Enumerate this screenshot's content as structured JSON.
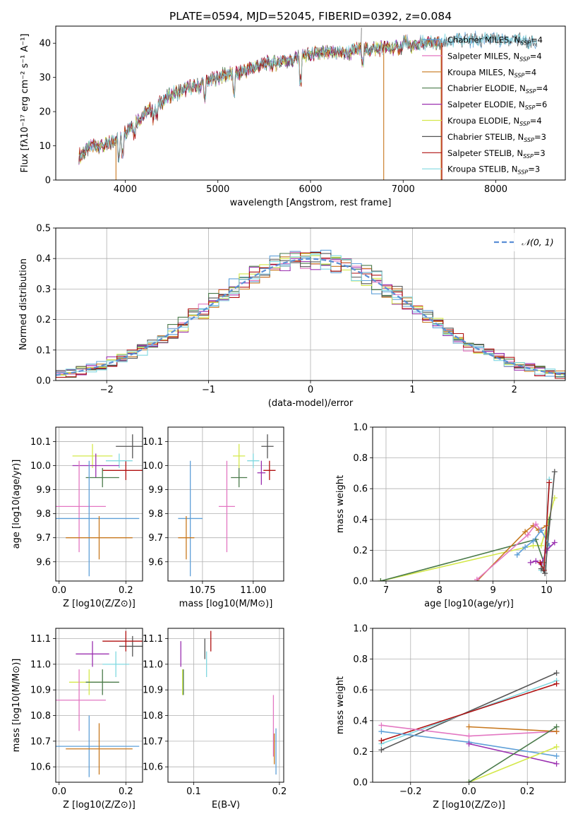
{
  "title": "PLATE=0594, MJD=52045, FIBERID=0392, z=0.084",
  "colors": {
    "chabrier_miles": "#5fa0d8",
    "salpeter_miles": "#e377c2",
    "kroupa_miles": "#c8781e",
    "chabrier_elodie": "#4a7a4a",
    "salpeter_elodie": "#9b30b0",
    "kroupa_elodie": "#d4e84a",
    "chabrier_stelib": "#555555",
    "salpeter_stelib": "#b01010",
    "kroupa_stelib": "#80d8e0",
    "gauss": "#5b8fd6"
  },
  "chart_data": [
    {
      "id": "spectrum",
      "type": "line",
      "xlabel": "wavelength [Angstrom, rest frame]",
      "ylabel": "Flux [fλ10⁻¹⁷ erg cm⁻² s⁻¹ A⁻¹]",
      "xlim": [
        3250,
        8750
      ],
      "ylim": [
        0,
        45
      ],
      "xticks": [
        4000,
        5000,
        6000,
        7000,
        8000
      ],
      "yticks": [
        0,
        10,
        20,
        30,
        40
      ],
      "legend_position": "top-right",
      "legend": [
        {
          "base": "Chabrier MILES, N",
          "n": "4",
          "color_key": "chabrier_miles"
        },
        {
          "base": "Salpeter MILES, N",
          "n": "4",
          "color_key": "salpeter_miles"
        },
        {
          "base": "Kroupa MILES, N",
          "n": "4",
          "color_key": "kroupa_miles"
        },
        {
          "base": "Chabrier ELODIE, N",
          "n": "4",
          "color_key": "chabrier_elodie"
        },
        {
          "base": "Salpeter ELODIE, N",
          "n": "6",
          "color_key": "salpeter_elodie"
        },
        {
          "base": "Kroupa ELODIE, N",
          "n": "4",
          "color_key": "kroupa_elodie"
        },
        {
          "base": "Chabrier STELIB, N",
          "n": "3",
          "color_key": "chabrier_stelib"
        },
        {
          "base": "Salpeter STELIB, N",
          "n": "3",
          "color_key": "salpeter_stelib"
        },
        {
          "base": "Kroupa STELIB, N",
          "n": "3",
          "color_key": "kroupa_stelib"
        }
      ],
      "continuum": [
        [
          3500,
          7
        ],
        [
          3650,
          10
        ],
        [
          3800,
          10
        ],
        [
          3900,
          12
        ],
        [
          4000,
          14
        ],
        [
          4100,
          17
        ],
        [
          4200,
          19
        ],
        [
          4300,
          21
        ],
        [
          4400,
          23
        ],
        [
          4500,
          25
        ],
        [
          4600,
          26
        ],
        [
          4700,
          27
        ],
        [
          4800,
          27.5
        ],
        [
          4900,
          29
        ],
        [
          5000,
          30
        ],
        [
          5100,
          31
        ],
        [
          5200,
          31
        ],
        [
          5300,
          32
        ],
        [
          5400,
          33
        ],
        [
          5500,
          34
        ],
        [
          5600,
          34
        ],
        [
          5700,
          35
        ],
        [
          5800,
          35
        ],
        [
          5900,
          36
        ],
        [
          6000,
          36.5
        ],
        [
          6100,
          37
        ],
        [
          6200,
          37
        ],
        [
          6300,
          37.5
        ],
        [
          6400,
          37
        ],
        [
          6500,
          38
        ],
        [
          6600,
          38
        ],
        [
          6700,
          38.5
        ],
        [
          6800,
          38.5
        ],
        [
          6900,
          38.5
        ],
        [
          7000,
          39
        ],
        [
          7100,
          39
        ],
        [
          7200,
          40
        ],
        [
          7300,
          40
        ],
        [
          7400,
          40
        ],
        [
          7600,
          41
        ],
        [
          7800,
          41
        ],
        [
          8000,
          41
        ],
        [
          8200,
          41
        ],
        [
          8400,
          40
        ]
      ],
      "drop_edges": [
        {
          "x": 3900,
          "color_key": "kroupa_miles"
        },
        {
          "x": 6790,
          "color_key": "kroupa_miles"
        },
        {
          "x": 7410,
          "color_key": "kroupa_miles"
        },
        {
          "x": 7418,
          "color_key": "salpeter_stelib"
        }
      ]
    },
    {
      "id": "residuals",
      "type": "line",
      "xlabel": "(data-model)/error",
      "ylabel": "Normed distribution",
      "xlim": [
        -2.5,
        2.5
      ],
      "ylim": [
        0,
        0.5
      ],
      "xticks": [
        -2,
        -1,
        0,
        1,
        2
      ],
      "yticks": [
        0,
        0.1,
        0.2,
        0.3,
        0.4,
        0.5
      ],
      "legend_position": "top-right",
      "gauss_label": "𝒩(0, 1)"
    },
    {
      "id": "z_vs_age",
      "type": "scatter",
      "xlabel": "Z [log10(Z/Z⊙)]",
      "ylabel": "age  [log10(age/yr)]",
      "xlim": [
        -0.01,
        0.25
      ],
      "ylim": [
        9.52,
        10.16
      ],
      "xticks": [
        0.0,
        0.2
      ],
      "yticks": [
        9.6,
        9.7,
        9.8,
        9.9,
        10.0,
        10.1
      ],
      "points": [
        {
          "color_key": "chabrier_stelib",
          "x": 0.22,
          "xerr": 0.05,
          "y": 10.08,
          "yerr": 0.05
        },
        {
          "color_key": "salpeter_stelib",
          "x": 0.2,
          "xerr": 0.07,
          "y": 9.98,
          "yerr": 0.04
        },
        {
          "color_key": "kroupa_stelib",
          "x": 0.18,
          "xerr": 0.04,
          "y": 10.02,
          "yerr": 0.03
        },
        {
          "color_key": "kroupa_elodie",
          "x": 0.1,
          "xerr": 0.06,
          "y": 10.04,
          "yerr": 0.05
        },
        {
          "color_key": "salpeter_elodie",
          "x": 0.11,
          "xerr": 0.07,
          "y": 10.0,
          "yerr": 0.05
        },
        {
          "color_key": "chabrier_elodie",
          "x": 0.13,
          "xerr": 0.05,
          "y": 9.95,
          "yerr": 0.04
        },
        {
          "color_key": "salpeter_miles",
          "x": 0.06,
          "xerr": 0.08,
          "y": 9.83,
          "yerr": 0.19
        },
        {
          "color_key": "chabrier_miles",
          "x": 0.09,
          "xerr": 0.15,
          "y": 9.78,
          "yerr": 0.24
        },
        {
          "color_key": "kroupa_miles",
          "x": 0.12,
          "xerr": 0.1,
          "y": 9.7,
          "yerr": 0.09
        }
      ]
    },
    {
      "id": "mass_vs_age",
      "type": "scatter",
      "xlabel": "mass [log10(M/M⊙)]",
      "xlim": [
        10.58,
        11.15
      ],
      "ylim": [
        9.52,
        10.16
      ],
      "xticks": [
        10.75,
        11.0
      ],
      "yticks": [
        9.6,
        9.7,
        9.8,
        9.9,
        10.0,
        10.1
      ],
      "points": [
        {
          "color_key": "chabrier_stelib",
          "x": 11.07,
          "xerr": 0.03,
          "y": 10.08,
          "yerr": 0.05
        },
        {
          "color_key": "salpeter_stelib",
          "x": 11.08,
          "xerr": 0.03,
          "y": 9.98,
          "yerr": 0.04
        },
        {
          "color_key": "kroupa_stelib",
          "x": 11.0,
          "xerr": 0.03,
          "y": 10.02,
          "yerr": 0.03
        },
        {
          "color_key": "kroupa_elodie",
          "x": 10.93,
          "xerr": 0.03,
          "y": 10.04,
          "yerr": 0.05
        },
        {
          "color_key": "salpeter_elodie",
          "x": 11.04,
          "xerr": 0.02,
          "y": 9.97,
          "yerr": 0.05
        },
        {
          "color_key": "chabrier_elodie",
          "x": 10.93,
          "xerr": 0.04,
          "y": 9.95,
          "yerr": 0.04
        },
        {
          "color_key": "salpeter_miles",
          "x": 10.87,
          "xerr": 0.04,
          "y": 9.83,
          "yerr": 0.19
        },
        {
          "color_key": "chabrier_miles",
          "x": 10.69,
          "xerr": 0.06,
          "y": 9.78,
          "yerr": 0.24
        },
        {
          "color_key": "kroupa_miles",
          "x": 10.67,
          "xerr": 0.04,
          "y": 9.7,
          "yerr": 0.09
        }
      ]
    },
    {
      "id": "age_vs_weight",
      "type": "line",
      "xlabel": "age  [log10(age/yr)]",
      "ylabel": "mass weight",
      "xlim": [
        6.75,
        10.35
      ],
      "ylim": [
        0,
        1
      ],
      "xticks": [
        7,
        8,
        9,
        10
      ],
      "yticks": [
        0,
        0.2,
        0.4,
        0.6,
        0.8,
        1.0
      ],
      "series": [
        {
          "color_key": "kroupa_elodie",
          "x": [
            6.9,
            9.75,
            9.9,
            10.15
          ],
          "y": [
            0.0,
            0.23,
            0.23,
            0.54
          ]
        },
        {
          "color_key": "chabrier_elodie",
          "x": [
            6.9,
            9.8,
            9.95,
            10.05
          ],
          "y": [
            0.0,
            0.27,
            0.12,
            0.4
          ]
        },
        {
          "color_key": "kroupa_miles",
          "x": [
            8.7,
            9.6,
            9.75,
            9.85,
            10.0
          ],
          "y": [
            0.0,
            0.32,
            0.36,
            0.33,
            0.36
          ]
        },
        {
          "color_key": "salpeter_miles",
          "x": [
            8.7,
            9.65,
            9.8,
            9.9
          ],
          "y": [
            0.01,
            0.3,
            0.37,
            0.33
          ]
        },
        {
          "color_key": "chabrier_miles",
          "x": [
            9.45,
            9.6,
            9.75,
            9.9,
            10.05
          ],
          "y": [
            0.17,
            0.22,
            0.26,
            0.33,
            0.23
          ]
        },
        {
          "color_key": "salpeter_elodie",
          "x": [
            9.7,
            9.8,
            9.9,
            10.0,
            10.15
          ],
          "y": [
            0.12,
            0.13,
            0.11,
            0.2,
            0.25
          ]
        },
        {
          "color_key": "kroupa_stelib",
          "x": [
            9.9,
            9.95,
            10.05
          ],
          "y": [
            0.07,
            0.1,
            0.66
          ]
        },
        {
          "color_key": "salpeter_stelib",
          "x": [
            9.88,
            9.95,
            10.05
          ],
          "y": [
            0.12,
            0.07,
            0.64
          ]
        },
        {
          "color_key": "chabrier_stelib",
          "x": [
            9.9,
            9.97,
            10.15
          ],
          "y": [
            0.08,
            0.05,
            0.71
          ]
        }
      ]
    },
    {
      "id": "z_vs_mass",
      "type": "scatter",
      "xlabel": "Z [log10(Z/Z⊙)]",
      "ylabel": "mass [log10(M/M⊙)]",
      "xlim": [
        -0.01,
        0.25
      ],
      "ylim": [
        10.54,
        11.14
      ],
      "xticks": [
        0.0,
        0.2
      ],
      "yticks": [
        10.6,
        10.7,
        10.8,
        10.9,
        11.0,
        11.1
      ],
      "points": [
        {
          "color_key": "chabrier_stelib",
          "x": 0.22,
          "xerr": 0.04,
          "y": 11.07,
          "yerr": 0.04
        },
        {
          "color_key": "salpeter_stelib",
          "x": 0.2,
          "xerr": 0.07,
          "y": 11.09,
          "yerr": 0.04
        },
        {
          "color_key": "kroupa_stelib",
          "x": 0.17,
          "xerr": 0.04,
          "y": 11.0,
          "yerr": 0.05
        },
        {
          "color_key": "salpeter_elodie",
          "x": 0.1,
          "xerr": 0.05,
          "y": 11.04,
          "yerr": 0.05
        },
        {
          "color_key": "kroupa_elodie",
          "x": 0.09,
          "xerr": 0.06,
          "y": 10.93,
          "yerr": 0.05
        },
        {
          "color_key": "chabrier_elodie",
          "x": 0.13,
          "xerr": 0.05,
          "y": 10.93,
          "yerr": 0.05
        },
        {
          "color_key": "salpeter_miles",
          "x": 0.06,
          "xerr": 0.08,
          "y": 10.86,
          "yerr": 0.12
        },
        {
          "color_key": "chabrier_miles",
          "x": 0.09,
          "xerr": 0.15,
          "y": 10.68,
          "yerr": 0.12
        },
        {
          "color_key": "kroupa_miles",
          "x": 0.12,
          "xerr": 0.1,
          "y": 10.67,
          "yerr": 0.1
        }
      ]
    },
    {
      "id": "ebv_vs_mass",
      "type": "scatter",
      "xlabel": "E(B-V)",
      "xlim": [
        0.07,
        0.205
      ],
      "ylim": [
        10.54,
        11.14
      ],
      "xticks": [
        0.1,
        0.2
      ],
      "yticks": [
        10.6,
        10.7,
        10.8,
        10.9,
        11.0,
        11.1
      ],
      "points": [
        {
          "color_key": "salpeter_stelib",
          "x": 0.12,
          "xerr": 0,
          "y": 11.09,
          "yerr": 0.04
        },
        {
          "color_key": "chabrier_stelib",
          "x": 0.113,
          "xerr": 0,
          "y": 11.06,
          "yerr": 0.04
        },
        {
          "color_key": "kroupa_stelib",
          "x": 0.115,
          "xerr": 0,
          "y": 11.0,
          "yerr": 0.05
        },
        {
          "color_key": "salpeter_elodie",
          "x": 0.085,
          "xerr": 0,
          "y": 11.04,
          "yerr": 0.05
        },
        {
          "color_key": "kroupa_elodie",
          "x": 0.087,
          "xerr": 0,
          "y": 10.93,
          "yerr": 0.05
        },
        {
          "color_key": "chabrier_elodie",
          "x": 0.088,
          "xerr": 0,
          "y": 10.93,
          "yerr": 0.05
        },
        {
          "color_key": "salpeter_miles",
          "x": 0.193,
          "xerr": 0,
          "y": 10.76,
          "yerr": 0.12
        },
        {
          "color_key": "kroupa_miles",
          "x": 0.194,
          "xerr": 0,
          "y": 10.67,
          "yerr": 0.06
        },
        {
          "color_key": "chabrier_miles",
          "x": 0.196,
          "xerr": 0,
          "y": 10.66,
          "yerr": 0.09
        }
      ]
    },
    {
      "id": "z_vs_weight",
      "type": "line",
      "xlabel": "Z [log10(Z/Z⊙)]",
      "ylabel": "mass weight",
      "xlim": [
        -0.33,
        0.33
      ],
      "ylim": [
        0,
        1
      ],
      "xticks": [
        -0.2,
        0.0,
        0.2
      ],
      "yticks": [
        0,
        0.2,
        0.4,
        0.6,
        0.8,
        1.0
      ],
      "series": [
        {
          "color_key": "chabrier_stelib",
          "x": [
            -0.3,
            0.3
          ],
          "y": [
            0.21,
            0.71
          ]
        },
        {
          "color_key": "kroupa_stelib",
          "x": [
            -0.3,
            0.3
          ],
          "y": [
            0.25,
            0.66
          ]
        },
        {
          "color_key": "salpeter_stelib",
          "x": [
            -0.3,
            0.3
          ],
          "y": [
            0.27,
            0.64
          ]
        },
        {
          "color_key": "chabrier_miles",
          "x": [
            -0.3,
            0.0,
            0.3
          ],
          "y": [
            0.33,
            0.26,
            0.17
          ]
        },
        {
          "color_key": "salpeter_miles",
          "x": [
            -0.3,
            0.0,
            0.3
          ],
          "y": [
            0.37,
            0.3,
            0.33
          ]
        },
        {
          "color_key": "kroupa_miles",
          "x": [
            0.0,
            0.3
          ],
          "y": [
            0.36,
            0.33
          ]
        },
        {
          "color_key": "salpeter_elodie",
          "x": [
            0.0,
            0.3
          ],
          "y": [
            0.25,
            0.12
          ]
        },
        {
          "color_key": "kroupa_elodie",
          "x": [
            0.0,
            0.3
          ],
          "y": [
            0.0,
            0.23
          ]
        },
        {
          "color_key": "chabrier_elodie",
          "x": [
            0.0,
            0.3
          ],
          "y": [
            0.0,
            0.36
          ]
        }
      ]
    }
  ]
}
